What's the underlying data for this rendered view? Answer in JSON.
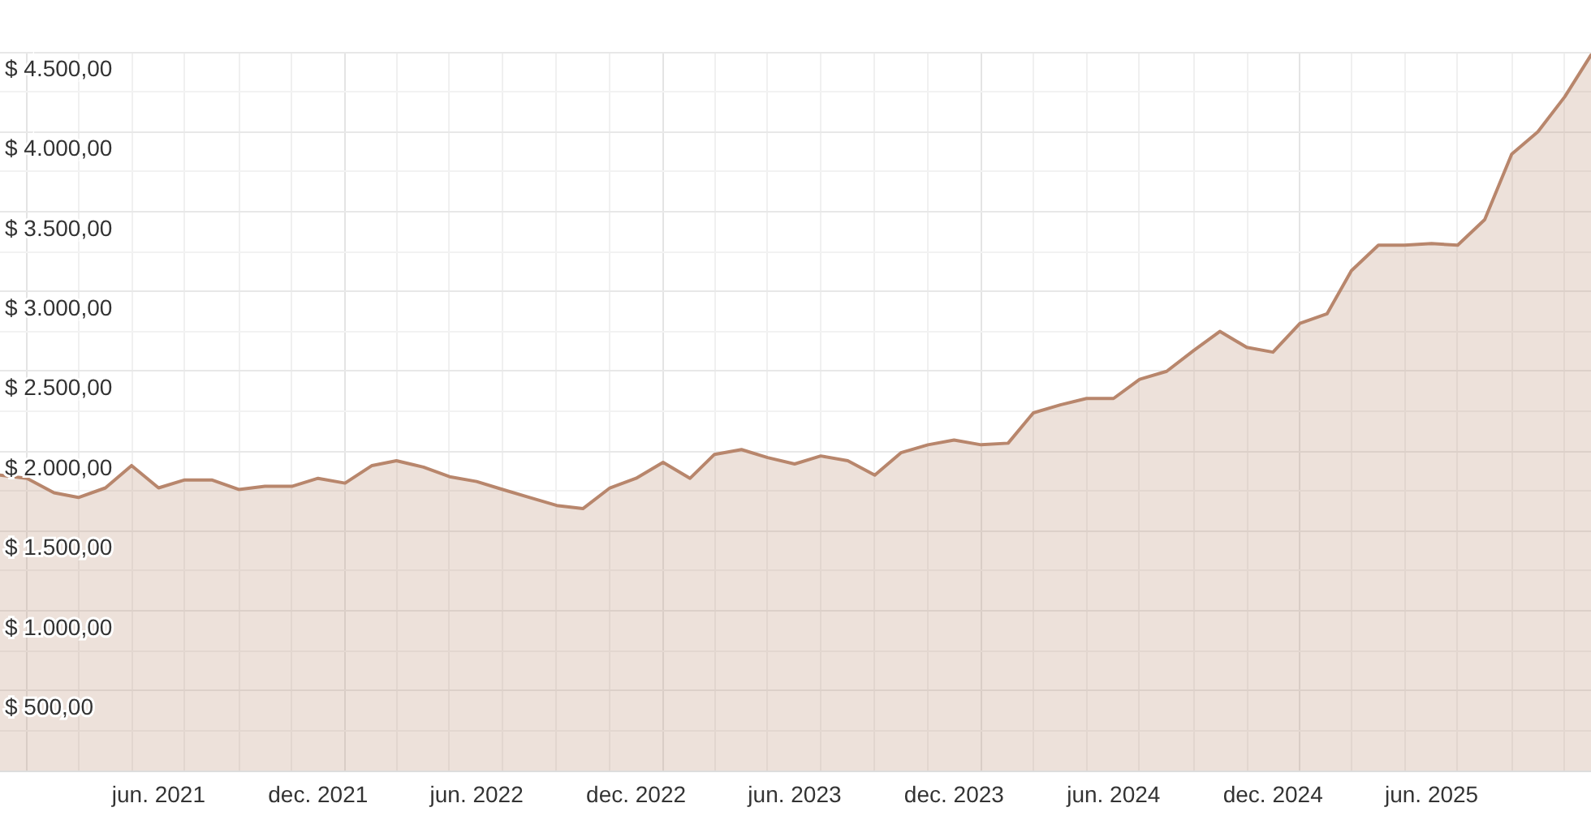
{
  "chart_data": {
    "type": "area",
    "x": [
      "2020-12",
      "2021-01",
      "2021-02",
      "2021-03",
      "2021-04",
      "2021-05",
      "2021-06",
      "2021-07",
      "2021-08",
      "2021-09",
      "2021-10",
      "2021-11",
      "2021-12",
      "2022-01",
      "2022-02",
      "2022-03",
      "2022-04",
      "2022-05",
      "2022-06",
      "2022-07",
      "2022-08",
      "2022-09",
      "2022-10",
      "2022-11",
      "2022-12",
      "2023-01",
      "2023-02",
      "2023-03",
      "2023-04",
      "2023-05",
      "2023-06",
      "2023-07",
      "2023-08",
      "2023-09",
      "2023-10",
      "2023-11",
      "2023-12",
      "2024-01",
      "2024-02",
      "2024-03",
      "2024-04",
      "2024-05",
      "2024-06",
      "2024-07",
      "2024-08",
      "2024-09",
      "2024-10",
      "2024-11",
      "2024-12",
      "2025-01",
      "2025-02",
      "2025-03",
      "2025-04",
      "2025-05",
      "2025-06",
      "2025-07",
      "2025-08",
      "2025-09",
      "2025-10",
      "2025-11",
      "2025-12"
    ],
    "values": [
      1850,
      1830,
      1740,
      1710,
      1770,
      1910,
      1770,
      1820,
      1820,
      1760,
      1780,
      1780,
      1830,
      1800,
      1910,
      1940,
      1900,
      1840,
      1810,
      1760,
      1710,
      1660,
      1640,
      1770,
      1830,
      1930,
      1830,
      1980,
      2010,
      1960,
      1920,
      1970,
      1940,
      1850,
      1990,
      2040,
      2070,
      2040,
      2050,
      2240,
      2290,
      2330,
      2330,
      2450,
      2500,
      2630,
      2750,
      2650,
      2620,
      2800,
      2860,
      3130,
      3290,
      3290,
      3300,
      3290,
      3450,
      3860,
      4000,
      4220,
      4480
    ],
    "color": "#b8866c",
    "xlim": [
      "2020-12",
      "2025-12"
    ],
    "xticks": [
      {
        "value": "2021-01",
        "label": null
      },
      {
        "value": "2021-03",
        "label": null
      },
      {
        "value": "2021-05",
        "label": null
      },
      {
        "value": "2021-06",
        "label": "jun. 2021"
      },
      {
        "value": "2021-07",
        "label": null
      },
      {
        "value": "2021-09",
        "label": null
      },
      {
        "value": "2021-11",
        "label": null
      },
      {
        "value": "2021-12",
        "label": "dec. 2021"
      },
      {
        "value": "2022-01",
        "label": null
      },
      {
        "value": "2022-03",
        "label": null
      },
      {
        "value": "2022-05",
        "label": null
      },
      {
        "value": "2022-06",
        "label": "jun. 2022"
      },
      {
        "value": "2022-07",
        "label": null
      },
      {
        "value": "2022-09",
        "label": null
      },
      {
        "value": "2022-11",
        "label": null
      },
      {
        "value": "2022-12",
        "label": "dec. 2022"
      },
      {
        "value": "2023-01",
        "label": null
      },
      {
        "value": "2023-03",
        "label": null
      },
      {
        "value": "2023-05",
        "label": null
      },
      {
        "value": "2023-06",
        "label": "jun. 2023"
      },
      {
        "value": "2023-07",
        "label": null
      },
      {
        "value": "2023-09",
        "label": null
      },
      {
        "value": "2023-11",
        "label": null
      },
      {
        "value": "2023-12",
        "label": "dec. 2023"
      },
      {
        "value": "2024-01",
        "label": null
      },
      {
        "value": "2024-03",
        "label": null
      },
      {
        "value": "2024-05",
        "label": null
      },
      {
        "value": "2024-06",
        "label": "jun. 2024"
      },
      {
        "value": "2024-07",
        "label": null
      },
      {
        "value": "2024-09",
        "label": null
      },
      {
        "value": "2024-11",
        "label": null
      },
      {
        "value": "2024-12",
        "label": "dec. 2024"
      },
      {
        "value": "2025-01",
        "label": null
      },
      {
        "value": "2025-03",
        "label": null
      },
      {
        "value": "2025-05",
        "label": null
      },
      {
        "value": "2025-06",
        "label": "jun. 2025"
      },
      {
        "value": "2025-07",
        "label": null
      },
      {
        "value": "2025-09",
        "label": null
      },
      {
        "value": "2025-11",
        "label": null
      }
    ],
    "ylim": [
      0,
      4500
    ],
    "yticks": [
      {
        "value": 250,
        "label": null
      },
      {
        "value": 500,
        "label": "$ 500,00"
      },
      {
        "value": 750,
        "label": null
      },
      {
        "value": 1000,
        "label": "$ 1.000,00"
      },
      {
        "value": 1250,
        "label": null
      },
      {
        "value": 1500,
        "label": "$ 1.500,00"
      },
      {
        "value": 1750,
        "label": null
      },
      {
        "value": 2000,
        "label": "$ 2.000,00"
      },
      {
        "value": 2250,
        "label": null
      },
      {
        "value": 2500,
        "label": "$ 2.500,00"
      },
      {
        "value": 2750,
        "label": null
      },
      {
        "value": 3000,
        "label": "$ 3.000,00"
      },
      {
        "value": 3250,
        "label": null
      },
      {
        "value": 3500,
        "label": "$ 3.500,00"
      },
      {
        "value": 3750,
        "label": null
      },
      {
        "value": 4000,
        "label": "$ 4.000,00"
      },
      {
        "value": 4250,
        "label": null
      },
      {
        "value": 4500,
        "label": "$ 4.500,00"
      }
    ],
    "grid": true
  }
}
